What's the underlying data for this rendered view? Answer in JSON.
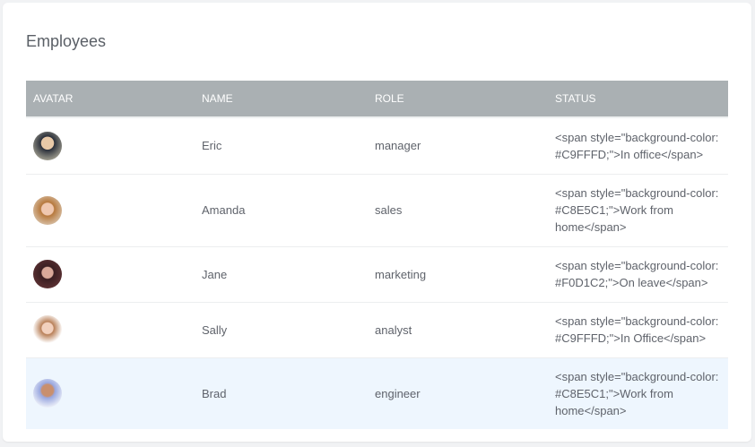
{
  "title": "Employees",
  "columns": [
    "AVATAR",
    "NAME",
    "ROLE",
    "STATUS"
  ],
  "rows": [
    {
      "name": "Eric",
      "role": "manager",
      "status": "<span style=\"background-color: #C9FFFD;\">In office</span>",
      "avatar": "avatar-eric"
    },
    {
      "name": "Amanda",
      "role": "sales",
      "status": "<span style=\"background-color: #C8E5C1;\">Work from home</span>",
      "avatar": "avatar-amanda"
    },
    {
      "name": "Jane",
      "role": "marketing",
      "status": "<span style=\"background-color: #F0D1C2;\">On leave</span>",
      "avatar": "avatar-jane"
    },
    {
      "name": "Sally",
      "role": "analyst",
      "status": "<span style=\"background-color: #C9FFFD;\">In Office</span>",
      "avatar": "avatar-sally"
    },
    {
      "name": "Brad",
      "role": "engineer",
      "status": "<span style=\"background-color: #C8E5C1;\">Work from home</span>",
      "avatar": "avatar-brad"
    }
  ]
}
